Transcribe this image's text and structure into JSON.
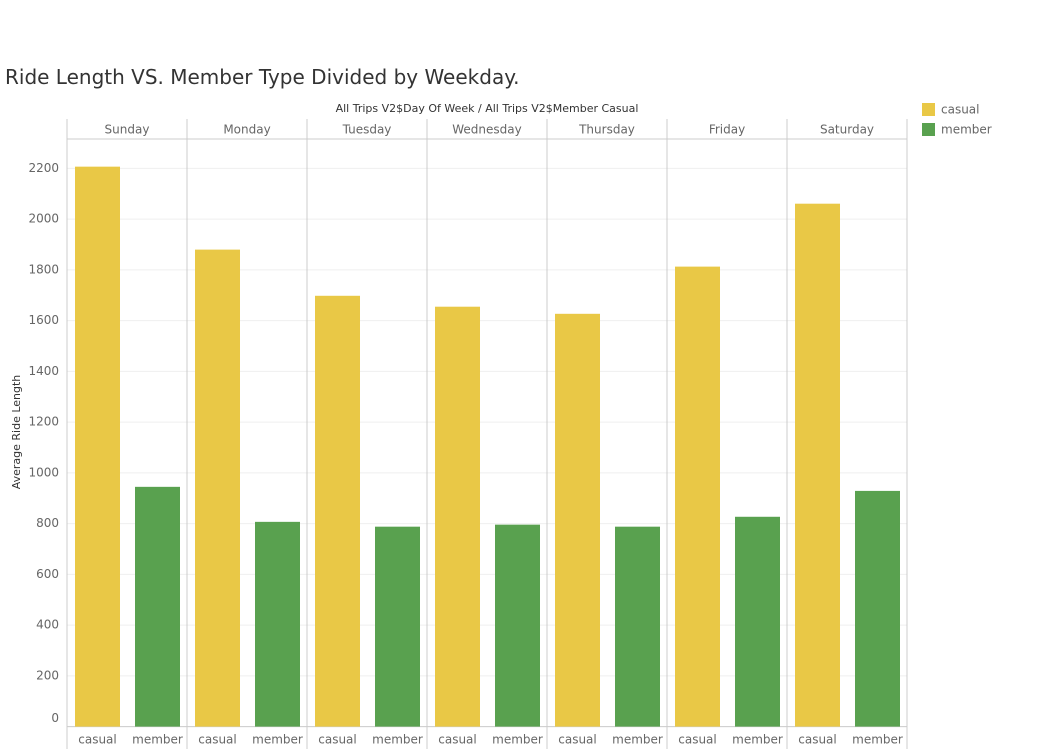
{
  "chart_data": {
    "type": "bar",
    "title": "Ride Length VS. Member Type Divided by Weekday.",
    "header": "All Trips V2$Day Of Week  /  All Trips V2$Member Casual",
    "y_label": "Average Ride Length",
    "categories": [
      "Sunday",
      "Monday",
      "Tuesday",
      "Wednesday",
      "Thursday",
      "Friday",
      "Saturday"
    ],
    "series": [
      {
        "name": "casual",
        "color": "#e9c846",
        "values": [
          2207,
          1880,
          1698,
          1655,
          1627,
          1813,
          2061
        ]
      },
      {
        "name": "member",
        "color": "#59a14f",
        "values": [
          945,
          807,
          788,
          796,
          788,
          827,
          929
        ]
      }
    ],
    "ylim": [
      0,
      2316
    ],
    "yticks": [
      0,
      200,
      400,
      600,
      800,
      1000,
      1200,
      1400,
      1600,
      1800,
      2000,
      2200
    ],
    "grid": true,
    "legend": "top-right"
  }
}
